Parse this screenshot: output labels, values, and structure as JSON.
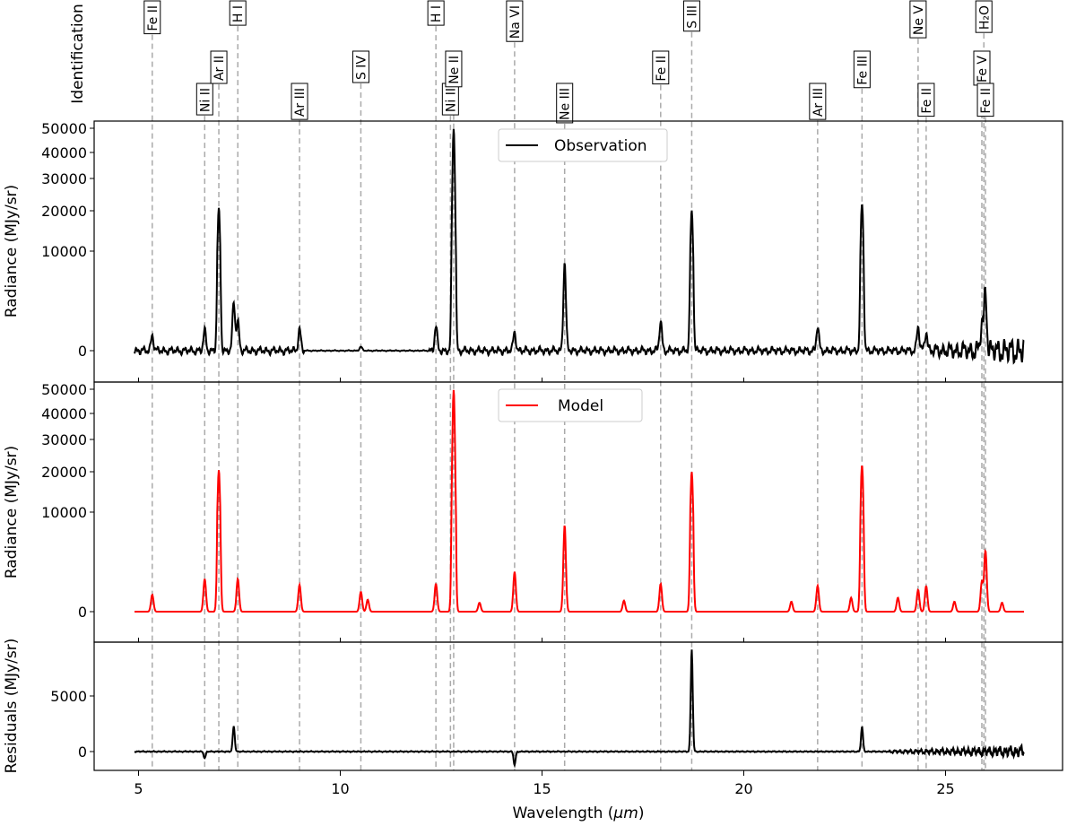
{
  "chart_data": {
    "type": "line",
    "xlabel_prefix": "Wavelength (",
    "xlabel_unit": "μm",
    "xlabel_suffix": ")",
    "xlim": [
      3.9,
      27.9
    ],
    "xticks": [
      5,
      10,
      15,
      20,
      25
    ],
    "identification_label": "Identification",
    "ylabel_radiance": "Radiance (MJy/sr)",
    "ylabel_residuals": "Residuals (MJy/sr)",
    "yticks_radiance": [
      "0",
      "10000",
      "20000",
      "30000",
      "40000",
      "50000"
    ],
    "yticks_residuals": [
      "0",
      "5000"
    ],
    "colors": {
      "observation": "#000000",
      "model": "#ff0000",
      "residuals": "#000000",
      "guide": "#aaaaaa"
    },
    "lines": [
      {
        "label": "Fe II",
        "x": 5.34,
        "row": 0
      },
      {
        "label": "Ni II",
        "x": 6.64,
        "row": 2
      },
      {
        "label": "Ar II",
        "x": 6.99,
        "row": 1
      },
      {
        "label": "H I",
        "x": 7.46,
        "row": 0
      },
      {
        "label": "Ar III",
        "x": 8.99,
        "row": 2
      },
      {
        "label": "S IV",
        "x": 10.51,
        "row": 1
      },
      {
        "label": "H I",
        "x": 12.37,
        "row": 0
      },
      {
        "label": "Ni II",
        "x": 12.73,
        "row": 2
      },
      {
        "label": "Ne II",
        "x": 12.81,
        "row": 1
      },
      {
        "label": "Na VI",
        "x": 14.32,
        "row": 0
      },
      {
        "label": "Ne III",
        "x": 15.56,
        "row": 2
      },
      {
        "label": "Fe II",
        "x": 17.94,
        "row": 1
      },
      {
        "label": "S III",
        "x": 18.71,
        "row": 0
      },
      {
        "label": "Ar III",
        "x": 21.83,
        "row": 2
      },
      {
        "label": "Fe III",
        "x": 22.93,
        "row": 1
      },
      {
        "label": "Ne V",
        "x": 24.32,
        "row": 0
      },
      {
        "label": "Fe II",
        "x": 24.52,
        "row": 2
      },
      {
        "label": "Fe V",
        "x": 25.9,
        "row": 1
      },
      {
        "label": "Fe II",
        "x": 25.99,
        "row": 2
      },
      {
        "label": "H₂O",
        "x": 25.95,
        "row": 0
      }
    ],
    "series": [
      {
        "name": "Observation",
        "peaks": [
          {
            "x": 5.34,
            "y": 1600
          },
          {
            "x": 6.64,
            "y": 2000
          },
          {
            "x": 6.99,
            "y": 20500
          },
          {
            "x": 7.36,
            "y": 4800
          },
          {
            "x": 7.46,
            "y": 3000
          },
          {
            "x": 8.99,
            "y": 2200
          },
          {
            "x": 10.51,
            "y": 400
          },
          {
            "x": 12.37,
            "y": 2400
          },
          {
            "x": 12.81,
            "y": 49800
          },
          {
            "x": 14.32,
            "y": 1900
          },
          {
            "x": 15.56,
            "y": 8900
          },
          {
            "x": 17.94,
            "y": 3000
          },
          {
            "x": 18.71,
            "y": 20000
          },
          {
            "x": 21.83,
            "y": 2400
          },
          {
            "x": 22.93,
            "y": 22000
          },
          {
            "x": 24.32,
            "y": 2400
          },
          {
            "x": 24.52,
            "y": 2000
          },
          {
            "x": 25.9,
            "y": 2800
          },
          {
            "x": 25.99,
            "y": 6100
          }
        ]
      },
      {
        "name": "Model",
        "peaks": [
          {
            "x": 5.34,
            "y": 1700
          },
          {
            "x": 6.64,
            "y": 3300
          },
          {
            "x": 6.99,
            "y": 20500
          },
          {
            "x": 7.46,
            "y": 3300
          },
          {
            "x": 8.99,
            "y": 2700
          },
          {
            "x": 10.51,
            "y": 2000
          },
          {
            "x": 10.68,
            "y": 1200
          },
          {
            "x": 12.37,
            "y": 2800
          },
          {
            "x": 12.81,
            "y": 49800
          },
          {
            "x": 13.45,
            "y": 900
          },
          {
            "x": 14.32,
            "y": 4000
          },
          {
            "x": 15.56,
            "y": 8700
          },
          {
            "x": 17.03,
            "y": 1100
          },
          {
            "x": 17.94,
            "y": 2800
          },
          {
            "x": 18.71,
            "y": 20000
          },
          {
            "x": 21.18,
            "y": 1000
          },
          {
            "x": 21.83,
            "y": 2600
          },
          {
            "x": 22.66,
            "y": 1400
          },
          {
            "x": 22.93,
            "y": 22000
          },
          {
            "x": 23.82,
            "y": 1400
          },
          {
            "x": 24.32,
            "y": 2200
          },
          {
            "x": 24.52,
            "y": 2600
          },
          {
            "x": 25.22,
            "y": 1000
          },
          {
            "x": 25.9,
            "y": 3000
          },
          {
            "x": 25.99,
            "y": 6100
          },
          {
            "x": 26.4,
            "y": 900
          }
        ]
      },
      {
        "name": "Residuals",
        "peaks": [
          {
            "x": 6.64,
            "y": -600
          },
          {
            "x": 7.36,
            "y": 2300
          },
          {
            "x": 14.32,
            "y": -1200
          },
          {
            "x": 18.71,
            "y": 9200
          },
          {
            "x": 22.93,
            "y": 2200
          }
        ]
      }
    ]
  }
}
